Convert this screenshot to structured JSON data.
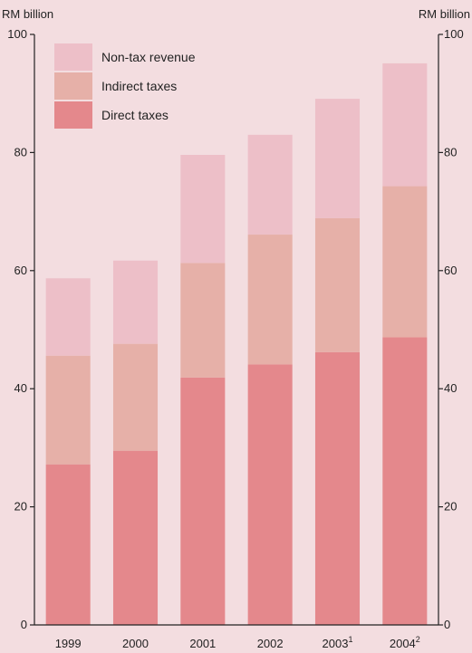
{
  "chart_data": {
    "type": "bar",
    "stacked": true,
    "categories": [
      "1999",
      "2000",
      "2001",
      "2002",
      "2003",
      "2004"
    ],
    "category_superscripts": [
      "",
      "",
      "",
      "",
      "1",
      "2"
    ],
    "series": [
      {
        "name": "Direct taxes",
        "values": [
          27.2,
          29.5,
          41.9,
          44.1,
          46.2,
          48.7
        ]
      },
      {
        "name": "Indirect taxes",
        "values": [
          18.4,
          18.1,
          19.4,
          22.0,
          22.7,
          25.6
        ]
      },
      {
        "name": "Non-tax revenue",
        "values": [
          13.1,
          14.1,
          18.3,
          16.9,
          20.2,
          20.8
        ]
      }
    ],
    "legend_order": [
      "Non-tax revenue",
      "Indirect taxes",
      "Direct taxes"
    ],
    "colors": {
      "Direct taxes": "#e4888c",
      "Indirect taxes": "#e6b0a8",
      "Non-tax revenue": "#edbfc8",
      "background": "#f3dde0",
      "axis": "#222222"
    },
    "ylim": [
      0,
      100
    ],
    "yticks": [
      0,
      20,
      40,
      60,
      80,
      100
    ],
    "ylabel_left": "RM billion",
    "ylabel_right": "RM billion",
    "legend_position": "top-left",
    "grid": false
  }
}
